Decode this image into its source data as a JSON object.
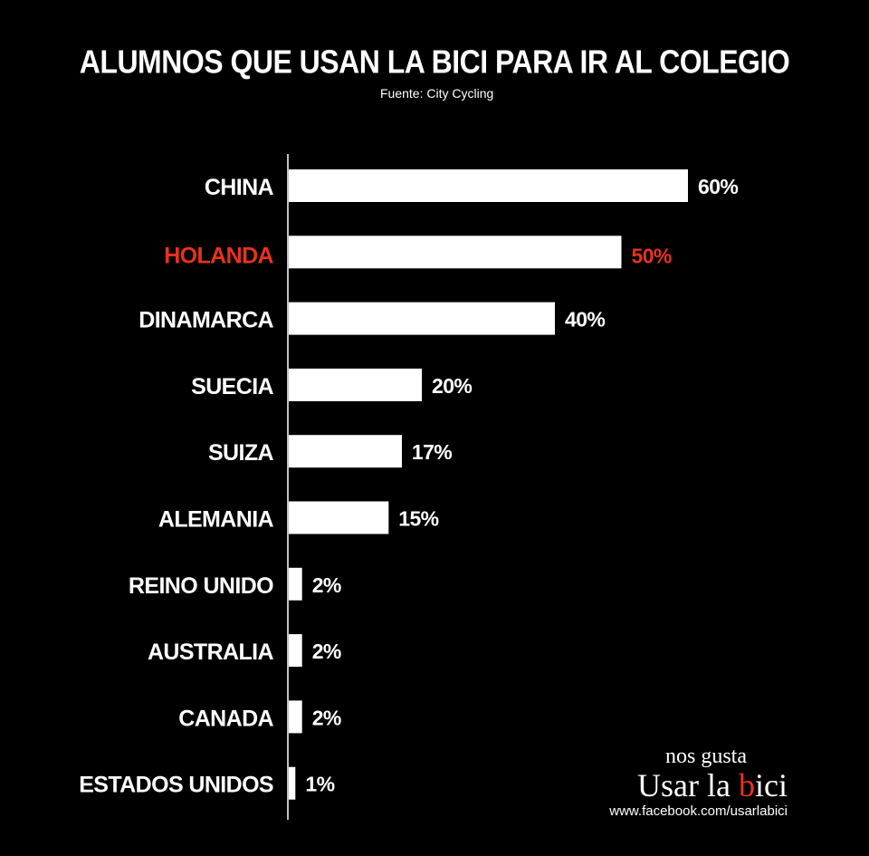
{
  "chart_data": {
    "type": "bar",
    "orientation": "horizontal",
    "title": "ALUMNOS QUE USAN LA BICI PARA IR AL COLEGIO",
    "subtitle": "Fuente: City Cycling",
    "categories": [
      "CHINA",
      "HOLANDA",
      "DINAMARCA",
      "SUECIA",
      "SUIZA",
      "ALEMANIA",
      "REINO UNIDO",
      "AUSTRALIA",
      "CANADA",
      "ESTADOS UNIDOS"
    ],
    "values": [
      60,
      50,
      40,
      20,
      17,
      15,
      2,
      2,
      2,
      1
    ],
    "value_labels": [
      "60%",
      "50%",
      "40%",
      "20%",
      "17%",
      "15%",
      "2%",
      "2%",
      "2%",
      "1%"
    ],
    "highlight_category": "HOLANDA",
    "xlim": [
      0,
      60
    ],
    "grid": false,
    "legend": "none"
  },
  "colors": {
    "background": "#000000",
    "bar": "#ffffff",
    "text": "#ffffff",
    "highlight": "#e8321f"
  },
  "brand": {
    "tagline": "nos gusta",
    "name_part1": "Usar la ",
    "name_part2": "b",
    "name_part3": "ici",
    "url": "www.facebook.com/usarlabici"
  }
}
